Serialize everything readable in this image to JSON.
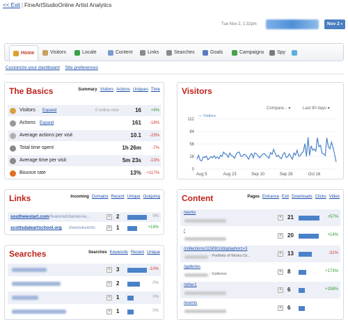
{
  "header": {
    "exit_label": "<< Exit",
    "separator": "|",
    "app_title": "FineArtStudioOnline Artist Analytics",
    "datetime": "Tue Nov 2, 1:32pm",
    "date_button": "Nov 2",
    "date_button_caret": "▾"
  },
  "tabs": [
    {
      "label": "Home",
      "icon": "home-icon",
      "color": "#e0a030"
    },
    {
      "label": "Visitors",
      "icon": "visitors-icon",
      "color": "#c8a060"
    },
    {
      "label": "Locale",
      "icon": "globe-icon",
      "color": "#3aa04a"
    },
    {
      "label": "Content",
      "icon": "content-icon",
      "color": "#7a9ccc"
    },
    {
      "label": "Links",
      "icon": "link-icon",
      "color": "#8a8a8a"
    },
    {
      "label": "Searches",
      "icon": "search-icon",
      "color": "#8a8a8a"
    },
    {
      "label": "Goals",
      "icon": "goals-icon",
      "color": "#5a7ac0"
    },
    {
      "label": "Campaigns",
      "icon": "campaigns-icon",
      "color": "#4aa04a"
    },
    {
      "label": "Spy",
      "icon": "spy-icon",
      "color": "#7a7a7a"
    },
    {
      "label": "",
      "icon": "twitter-icon",
      "color": "#5ab0e0"
    }
  ],
  "sublinks": {
    "customize": "Customize your dashboard",
    "preferences": "Site preferences"
  },
  "basics": {
    "title": "The Basics",
    "tabs": [
      "Summary",
      "Visitors",
      "Actions",
      "Uniques",
      "Time"
    ],
    "online_now": "0 online now",
    "rows": [
      {
        "label": "Visitors",
        "expand": "Expand",
        "value": "16",
        "change": "+6%",
        "trend": "up"
      },
      {
        "label": "Actions",
        "expand": "Expand",
        "value": "161",
        "change": "-18%",
        "trend": "down"
      },
      {
        "label": "Average actions per visit",
        "expand": "",
        "value": "10.1",
        "change": "-23%",
        "trend": "down"
      },
      {
        "label": "Total time spent",
        "expand": "",
        "value": "1h 26m",
        "change": "-7%",
        "trend": "down"
      },
      {
        "label": "Average time per visit",
        "expand": "",
        "value": "5m 23s",
        "change": "-13%",
        "trend": "down"
      },
      {
        "label": "Bounce rate",
        "expand": "",
        "value": "13%",
        "change": "+117%",
        "trend": "red"
      }
    ]
  },
  "visitors": {
    "title": "Visitors",
    "compare": "Compare...",
    "range": "Last 90 days",
    "legend": "Visitors"
  },
  "chart_data": {
    "type": "line",
    "series": [
      {
        "name": "Visitors",
        "values": [
          22,
          31,
          20,
          18,
          27,
          26,
          29,
          21,
          24,
          28,
          25,
          30,
          24,
          27,
          23,
          31,
          28,
          38,
          34,
          33,
          26,
          36,
          30,
          29,
          24,
          32,
          37,
          38,
          29,
          28,
          33,
          32,
          27,
          22,
          30,
          35,
          25,
          36,
          34,
          30,
          25,
          29,
          33,
          35,
          31,
          28,
          24,
          37,
          33,
          44,
          35,
          28,
          31,
          26,
          23,
          33,
          37,
          26,
          27,
          34,
          28,
          22,
          36,
          31,
          42,
          29,
          30,
          36,
          39,
          57,
          28,
          71,
          30,
          52,
          42,
          45,
          40,
          70,
          50,
          53,
          35,
          34,
          30,
          70,
          50,
          45,
          60,
          48,
          32,
          16
        ]
      }
    ],
    "x_tick_labels": [
      "Aug 5",
      "Aug 23",
      "Sep 10",
      "Sep 28",
      "Oct 16"
    ],
    "y_tick_labels": [
      "112",
      "84",
      "56",
      "28",
      "0"
    ],
    "ylim": [
      0,
      112
    ],
    "grid": true,
    "legend_position": "top-left"
  },
  "links": {
    "title": "Links",
    "tabs": [
      "Incoming",
      "Domains",
      "Recent",
      "Unique",
      "Outgoing"
    ],
    "rows": [
      {
        "url": "southwestart.com",
        "path": "/featured/daniel-ke...",
        "count": "2",
        "share": 1.0,
        "change": "0%",
        "trend": "neutral"
      },
      {
        "url": "scottsdaleartschool.org",
        "path": "/news/events",
        "count": "1",
        "share": 0.5,
        "change": "+19%",
        "trend": "up"
      }
    ]
  },
  "searches": {
    "title": "Searches",
    "tabs": [
      "Searches",
      "Keywords",
      "Recent",
      "Unique"
    ],
    "rows": [
      {
        "count": "3",
        "share": 1.0,
        "change": "-10%",
        "trend": "down"
      },
      {
        "count": "2",
        "share": 0.66,
        "change": "0%",
        "trend": "neutral"
      },
      {
        "count": "1",
        "share": 0.33,
        "change": "0%",
        "trend": "neutral"
      },
      {
        "count": "1",
        "share": 0.33,
        "change": "0%",
        "trend": "neutral"
      }
    ]
  },
  "content": {
    "title": "Content",
    "tabs": [
      "Pages",
      "Entrance",
      "Exit",
      "Downloads",
      "Clicks",
      "Video"
    ],
    "rows": [
      {
        "path": "/works",
        "subtitle": "",
        "count": "21",
        "share": 1.0,
        "change": "+57%",
        "trend": "up"
      },
      {
        "path": "/",
        "subtitle": "",
        "count": "20",
        "share": 0.95,
        "change": "+14%",
        "trend": "up"
      },
      {
        "path": "/collections/11509/1/displayhorz=3",
        "subtitle": "- Portfolio of Works:Or...",
        "count": "13",
        "share": 0.62,
        "change": "-31%",
        "trend": "down"
      },
      {
        "path": "/galleries",
        "subtitle": "- Galleries",
        "count": "8",
        "share": 0.38,
        "change": "+173%",
        "trend": "up"
      },
      {
        "path": "/other1",
        "subtitle": "",
        "count": "6",
        "share": 0.29,
        "change": "+258%",
        "trend": "up"
      },
      {
        "path": "/events",
        "subtitle": "",
        "count": "6",
        "share": 0.29,
        "change": "",
        "trend": "up"
      }
    ]
  }
}
